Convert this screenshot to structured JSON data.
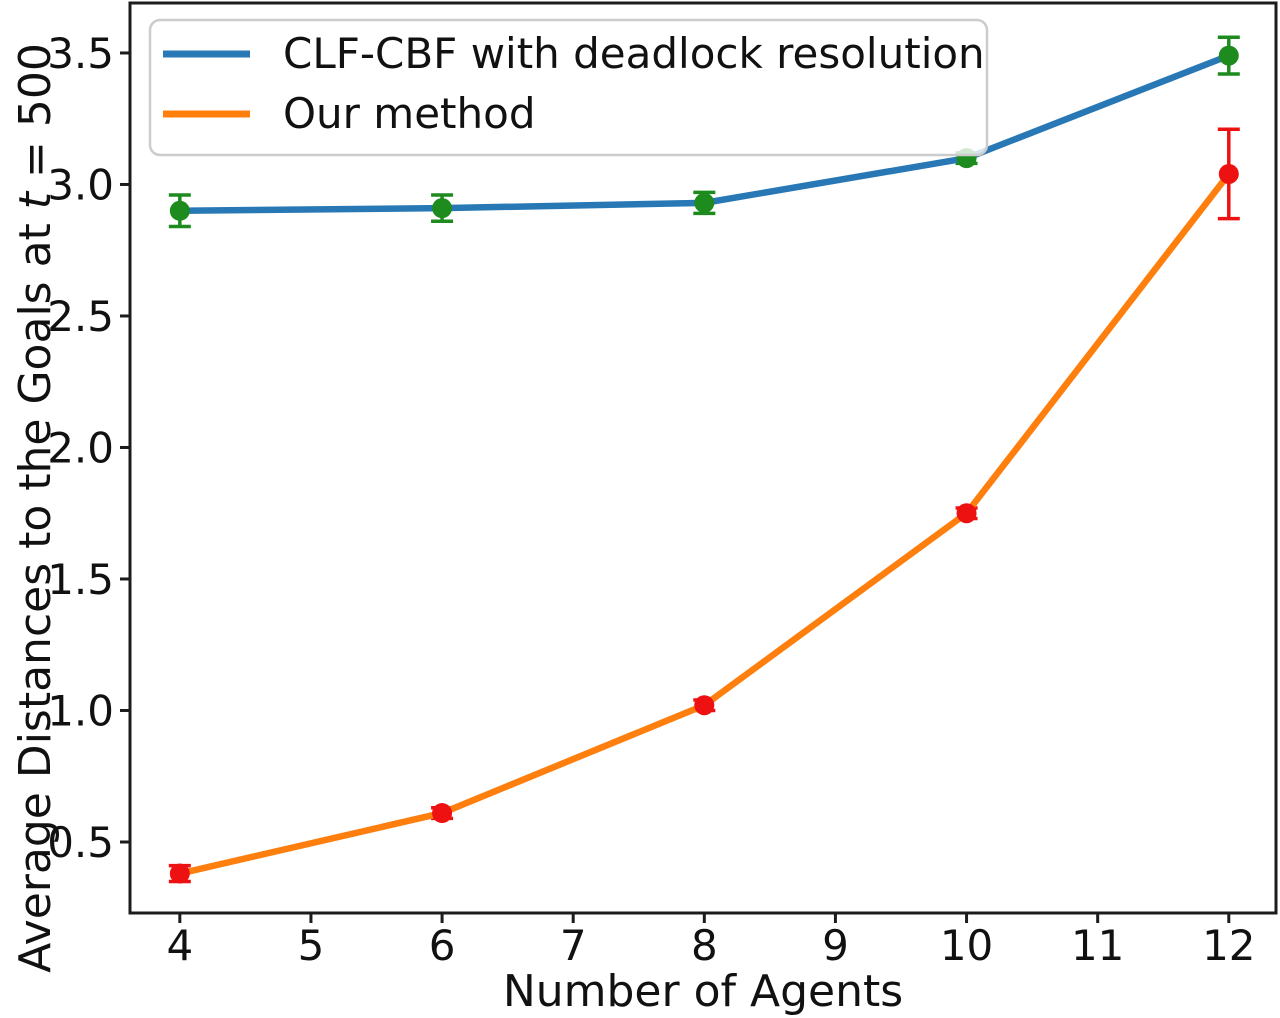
{
  "figure": {
    "background": "#ffffff",
    "frame_color": "#1c1c1c",
    "text_color": "#111111"
  },
  "chart_data": {
    "type": "line",
    "title": "",
    "xlabel": "Number of Agents",
    "ylabel": "Average Distances to the Goals at t = 500",
    "ylabel_parts": {
      "prefix": "Average Distances to the Goals at ",
      "var": "t",
      "suffix": " = 500"
    },
    "xlim": [
      3.62,
      12.36
    ],
    "ylim": [
      0.23,
      3.69
    ],
    "xticks": [
      4,
      5,
      6,
      7,
      8,
      9,
      10,
      11,
      12
    ],
    "yticks": [
      0.5,
      1.0,
      1.5,
      2.0,
      2.5,
      3.0,
      3.5
    ],
    "grid": false,
    "legend": {
      "position": "upper left",
      "border_color": "#cccccc",
      "background": "rgba(255,255,255,0.8)"
    },
    "x": [
      4,
      6,
      8,
      10,
      12
    ],
    "series": [
      {
        "name": "CLF-CBF with deadlock resolution",
        "line_color": "#2878b5",
        "marker_color": "#1e8b1e",
        "marker": "circle",
        "values": [
          2.9,
          2.91,
          2.93,
          3.1,
          3.49
        ],
        "yerr": [
          0.06,
          0.05,
          0.04,
          0.02,
          0.07
        ]
      },
      {
        "name": "Our method",
        "line_color": "#ff7f0e",
        "marker_color": "#ee1111",
        "marker": "circle",
        "values": [
          0.38,
          0.61,
          1.02,
          1.75,
          3.04
        ],
        "yerr": [
          0.03,
          0.02,
          0.02,
          0.02,
          0.17
        ]
      }
    ]
  }
}
